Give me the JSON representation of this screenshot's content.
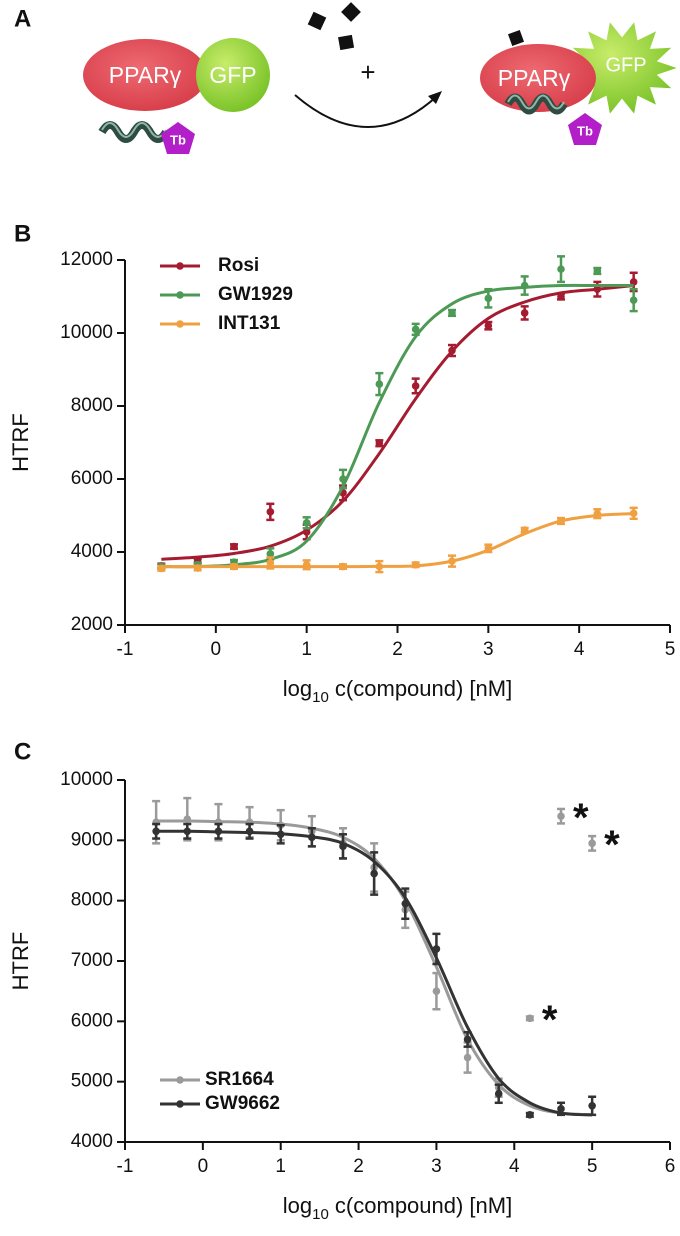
{
  "panel_a": {
    "label": "A",
    "left": {
      "receptor": "PPARγ",
      "fluor": "GFP",
      "donor": "Tb"
    },
    "plus": "+",
    "right": {
      "receptor": "PPARγ",
      "fluor": "GFP",
      "donor": "Tb"
    }
  },
  "chart_data": [
    {
      "type": "scatter",
      "panel_label": "B",
      "ylabel": "HTRF",
      "xlabel": [
        "log",
        "10",
        " c(compound) [nM]"
      ],
      "xlim": [
        -1,
        5
      ],
      "xticks": [
        -1,
        0,
        1,
        2,
        3,
        4,
        5
      ],
      "ylim": [
        2000,
        12000
      ],
      "yticks": [
        2000,
        4000,
        6000,
        8000,
        10000,
        12000
      ],
      "legend": "upper left",
      "x": [
        -0.6,
        -0.2,
        0.2,
        0.6,
        1.0,
        1.4,
        1.8,
        2.2,
        2.6,
        3.0,
        3.4,
        3.8,
        4.2,
        4.6
      ],
      "series": [
        {
          "name": "Rosi",
          "color": "#a51c30",
          "values": [
            3620,
            3750,
            4150,
            5100,
            4550,
            5620,
            6980,
            8550,
            9520,
            10200,
            10550,
            11000,
            11200,
            11400
          ],
          "errors": [
            60,
            60,
            60,
            220,
            200,
            200,
            80,
            200,
            150,
            100,
            180,
            80,
            200,
            250
          ],
          "fit_values": [
            3800,
            3860,
            3960,
            4160,
            4600,
            5400,
            6700,
            8200,
            9500,
            10400,
            10850,
            11100,
            11200,
            11300
          ]
        },
        {
          "name": "GW1929",
          "color": "#4c9a55",
          "values": [
            3600,
            3650,
            3720,
            3950,
            4800,
            6000,
            8600,
            10100,
            10550,
            10950,
            11300,
            11750,
            11700,
            10900
          ],
          "errors": [
            60,
            60,
            60,
            150,
            150,
            250,
            300,
            150,
            80,
            250,
            250,
            350,
            80,
            300
          ],
          "fit_values": [
            3600,
            3600,
            3650,
            3800,
            4300,
            5800,
            8100,
            9900,
            10800,
            11150,
            11250,
            11300,
            11300,
            11300
          ]
        },
        {
          "name": "INT131",
          "color": "#f0a040",
          "values": [
            3550,
            3560,
            3600,
            3700,
            3650,
            3600,
            3600,
            3650,
            3750,
            4100,
            4600,
            4850,
            5050,
            5060
          ],
          "errors": [
            60,
            60,
            60,
            150,
            120,
            60,
            150,
            60,
            150,
            100,
            60,
            80,
            120,
            150
          ],
          "fit_values": [
            3600,
            3600,
            3600,
            3600,
            3600,
            3600,
            3605,
            3620,
            3750,
            4050,
            4500,
            4850,
            5000,
            5050
          ]
        }
      ]
    },
    {
      "type": "scatter",
      "panel_label": "C",
      "ylabel": "HTRF",
      "xlabel": [
        "log",
        "10",
        " c(compound) [nM]"
      ],
      "xlim": [
        -1,
        6
      ],
      "xticks": [
        -1,
        0,
        1,
        2,
        3,
        4,
        5,
        6
      ],
      "ylim": [
        4000,
        10000
      ],
      "yticks": [
        4000,
        5000,
        6000,
        7000,
        8000,
        9000,
        10000
      ],
      "legend": "lower left",
      "x": [
        -0.6,
        -0.2,
        0.2,
        0.6,
        1.0,
        1.4,
        1.8,
        2.2,
        2.6,
        3.0,
        3.4,
        3.8,
        4.2,
        4.6,
        5.0
      ],
      "series": [
        {
          "name": "SR1664",
          "color": "#9a9a9a",
          "values": [
            9300,
            9350,
            9300,
            9300,
            9250,
            9150,
            8950,
            8550,
            7850,
            6500,
            5400,
            4900,
            6050,
            9400,
            8950
          ],
          "errors": [
            350,
            350,
            300,
            250,
            250,
            250,
            250,
            400,
            300,
            300,
            250,
            150,
            30,
            120,
            120
          ],
          "fit_values": [
            9320,
            9320,
            9310,
            9300,
            9270,
            9200,
            9050,
            8700,
            8000,
            6900,
            5700,
            4950,
            4600,
            4480,
            4450
          ]
        },
        {
          "name": "GW9662",
          "color": "#333333",
          "values": [
            9150,
            9150,
            9150,
            9150,
            9100,
            9050,
            8900,
            8450,
            7950,
            7200,
            5700,
            4800,
            4450,
            4550,
            4600
          ],
          "errors": [
            120,
            120,
            120,
            120,
            150,
            150,
            200,
            350,
            250,
            250,
            120,
            150,
            30,
            100,
            150
          ],
          "fit_values": [
            9150,
            9150,
            9140,
            9130,
            9110,
            9060,
            8950,
            8650,
            8050,
            7050,
            5900,
            5050,
            4650,
            4480,
            4450
          ]
        }
      ],
      "annotations": [
        {
          "text": "*",
          "x": 4.2,
          "y": 6050
        },
        {
          "text": "*",
          "x": 4.6,
          "y": 9400
        },
        {
          "text": "*",
          "x": 5.0,
          "y": 8950
        }
      ]
    }
  ]
}
